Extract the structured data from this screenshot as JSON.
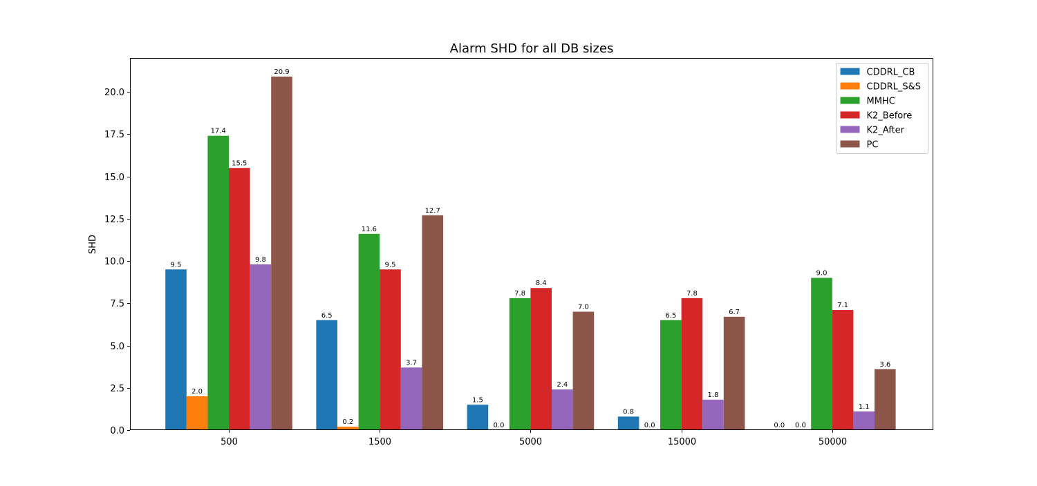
{
  "chart_data": {
    "type": "bar",
    "title": "Alarm SHD for all DB sizes",
    "xlabel": "",
    "ylabel": "SHD",
    "categories": [
      "500",
      "1500",
      "5000",
      "15000",
      "50000"
    ],
    "ylim": [
      0,
      22
    ],
    "yticks": [
      0.0,
      2.5,
      5.0,
      7.5,
      10.0,
      12.5,
      15.0,
      17.5,
      20.0
    ],
    "ytick_labels": [
      "0.0",
      "2.5",
      "5.0",
      "7.5",
      "10.0",
      "12.5",
      "15.0",
      "17.5",
      "20.0"
    ],
    "grid": false,
    "legend_position": "top-right",
    "series": [
      {
        "name": "CDDRL_CB",
        "color": "#1f77b4",
        "values": [
          9.5,
          6.5,
          1.5,
          0.8,
          0.0
        ],
        "labels": [
          "9.5",
          "6.5",
          "1.5",
          "0.8",
          "0.0"
        ]
      },
      {
        "name": "CDDRL_S&S",
        "color": "#ff7f0e",
        "values": [
          2.0,
          0.2,
          0.0,
          0.0,
          0.0
        ],
        "labels": [
          "2.0",
          "0.2",
          "0.0",
          "0.0",
          "0.0"
        ]
      },
      {
        "name": "MMHC",
        "color": "#2ca02c",
        "values": [
          17.4,
          11.6,
          7.8,
          6.5,
          9.0
        ],
        "labels": [
          "17.4",
          "11.6",
          "7.8",
          "6.5",
          "9.0"
        ]
      },
      {
        "name": "K2_Before",
        "color": "#d62728",
        "values": [
          15.5,
          9.5,
          8.4,
          7.8,
          7.1
        ],
        "labels": [
          "15.5",
          "9.5",
          "8.4",
          "7.8",
          "7.1"
        ]
      },
      {
        "name": "K2_After",
        "color": "#9467bd",
        "values": [
          9.8,
          3.7,
          2.4,
          1.8,
          1.1
        ],
        "labels": [
          "9.8",
          "3.7",
          "2.4",
          "1.8",
          "1.1"
        ]
      },
      {
        "name": "PC",
        "color": "#8c564b",
        "values": [
          20.9,
          12.7,
          7.0,
          6.7,
          3.6
        ],
        "labels": [
          "20.9",
          "12.7",
          "7.0",
          "6.7",
          "3.6"
        ]
      }
    ]
  }
}
